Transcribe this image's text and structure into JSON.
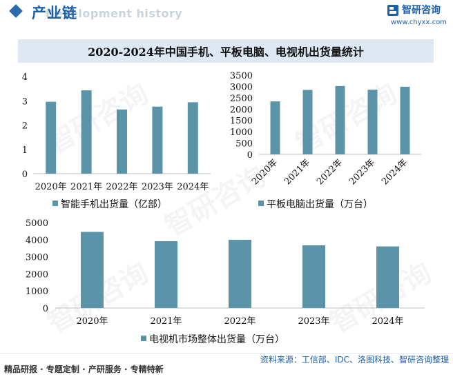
{
  "header": {
    "section_title": "产业链",
    "section_subtitle": "Development history",
    "brand_name": "智研咨询",
    "brand_url": "www.chyxx.com"
  },
  "title": "2020-2024年中国手机、平板电脑、电视机出货量统计",
  "footer": {
    "left": "精品研报 · 专题定制 · 产研服务 · 专精特新",
    "right": "资料来源：工信部、IDC、洛图科技、智研咨询整理"
  },
  "watermark": "智研咨询",
  "colors": {
    "bar": "#5b93a8",
    "axis": "#bfbfbf",
    "accent": "#1f5fa8"
  },
  "chart_data": [
    {
      "type": "bar",
      "categories": [
        "2020年",
        "2021年",
        "2022年",
        "2023年",
        "2024年"
      ],
      "series": [
        {
          "name": "智能手机出货量（亿部）",
          "values": [
            2.96,
            3.43,
            2.64,
            2.76,
            2.94
          ]
        }
      ],
      "ylim": [
        0,
        4
      ],
      "yticks": [
        "0",
        "1",
        "2",
        "3",
        "4"
      ],
      "legend": "bottom"
    },
    {
      "type": "bar",
      "categories": [
        "2020年",
        "2021年",
        "2022年",
        "2023年",
        "2024年"
      ],
      "series": [
        {
          "name": "平板电脑出货量（万台）",
          "values": [
            2339,
            2846,
            3017,
            2855,
            2987
          ]
        }
      ],
      "ylim": [
        0,
        3500
      ],
      "yticks": [
        "0",
        "500",
        "1000",
        "1500",
        "2000",
        "2500",
        "3000",
        "3500"
      ],
      "legend": "bottom"
    },
    {
      "type": "bar",
      "categories": [
        "2020年",
        "2021年",
        "2022年",
        "2023年",
        "2024年"
      ],
      "series": [
        {
          "name": "电视机市场整体出货量（万台）",
          "values": [
            4454,
            3911,
            3992,
            3669,
            3605
          ]
        }
      ],
      "ylim": [
        0,
        5000
      ],
      "yticks": [
        "0",
        "1000",
        "2000",
        "3000",
        "4000",
        "5000"
      ],
      "legend": "bottom"
    }
  ]
}
